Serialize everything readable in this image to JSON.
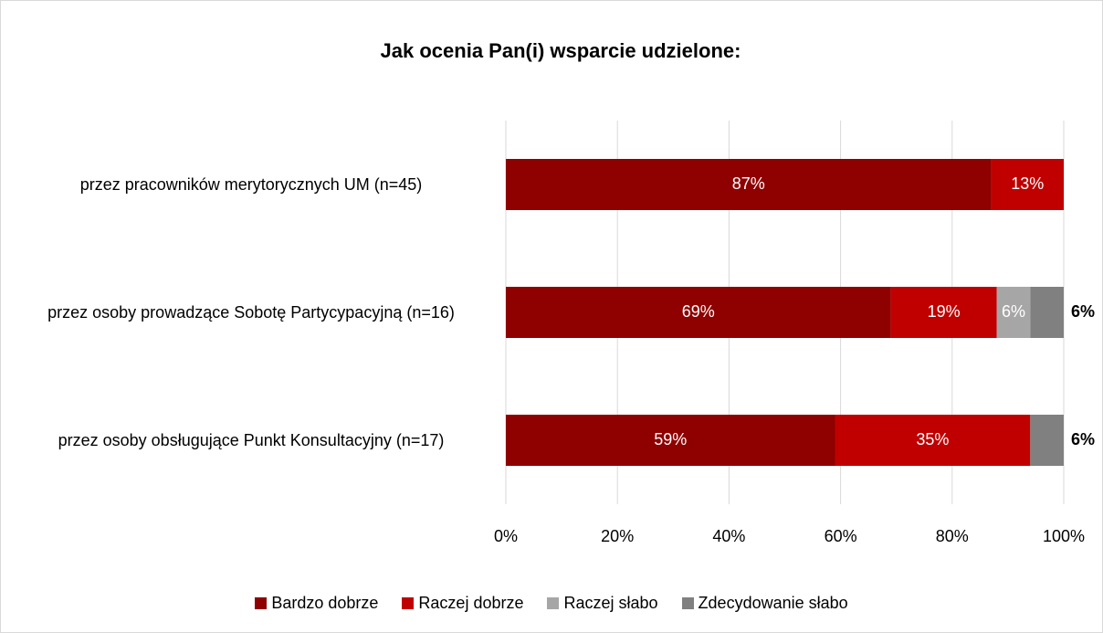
{
  "chart_data": {
    "type": "stacked_barh",
    "title": "Jak ocenia Pan(i) wsparcie udzielone:",
    "categories": [
      "przez pracowników merytorycznych UM (n=45)",
      "przez osoby prowadzące Sobotę Partycypacyjną (n=16)",
      "przez osoby obsługujące Punkt Konsultacyjny (n=17)"
    ],
    "series": [
      {
        "name": "Bardzo dobrze",
        "color": "#8f0000",
        "values": [
          87,
          69,
          59
        ],
        "value_labels": [
          "87%",
          "69%",
          "59%"
        ]
      },
      {
        "name": "Raczej dobrze",
        "color": "#c00000",
        "values": [
          13,
          19,
          35
        ],
        "value_labels": [
          "13%",
          "19%",
          "35%"
        ]
      },
      {
        "name": "Raczej słabo",
        "color": "#a6a6a6",
        "values": [
          null,
          6,
          null
        ],
        "value_labels": [
          null,
          "6%",
          null
        ]
      },
      {
        "name": "Zdecydowanie słabo",
        "color": "#808080",
        "values": [
          null,
          6,
          6
        ],
        "value_labels": [
          null,
          "6%",
          "6%"
        ]
      }
    ],
    "xlim": [
      0,
      100
    ],
    "xticks": [
      {
        "value": 0,
        "label": "0%"
      },
      {
        "value": 20,
        "label": "20%"
      },
      {
        "value": 40,
        "label": "40%"
      },
      {
        "value": 60,
        "label": "60%"
      },
      {
        "value": 80,
        "label": "80%"
      },
      {
        "value": 100,
        "label": "100%"
      }
    ],
    "grid": true,
    "legend": "bottom"
  }
}
